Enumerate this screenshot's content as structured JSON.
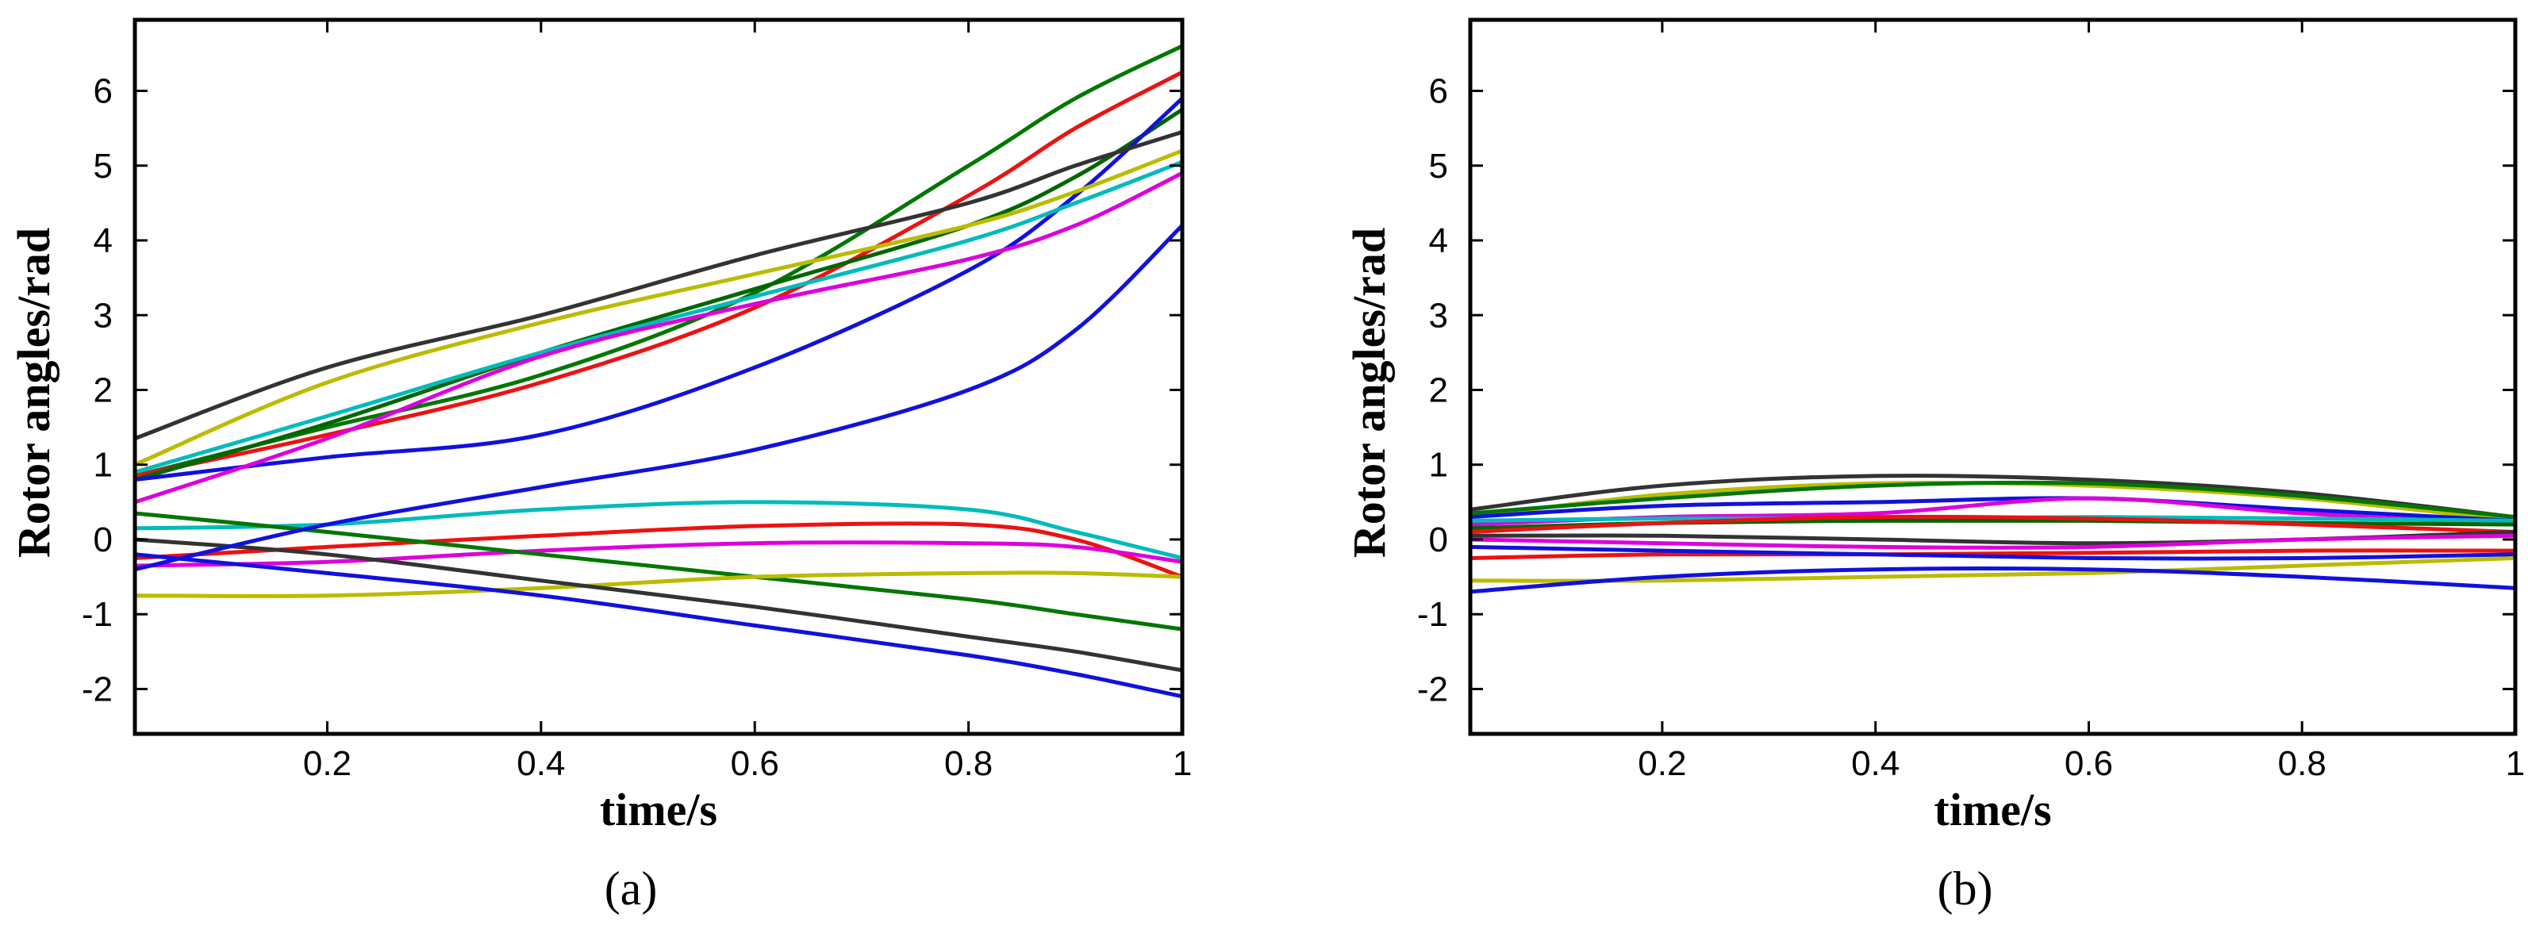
{
  "chart_data": [
    {
      "type": "line",
      "caption": "(a)",
      "xlabel": "time/s",
      "ylabel": "Rotor angles/rad",
      "xlim": [
        0.02,
        1.0
      ],
      "ylim": [
        -2.6,
        6.95
      ],
      "xticks": [
        0.2,
        0.4,
        0.6,
        0.8,
        1
      ],
      "xtick_labels": [
        "0.2",
        "0.4",
        "0.6",
        "0.8",
        "1"
      ],
      "yticks": [
        -2,
        -1,
        0,
        1,
        2,
        3,
        4,
        5,
        6
      ],
      "ytick_labels": [
        "-2",
        "-1",
        "0",
        "1",
        "2",
        "3",
        "4",
        "5",
        "6"
      ],
      "grid": false,
      "x": [
        0.02,
        0.2,
        0.4,
        0.6,
        0.8,
        0.9,
        1.0
      ],
      "series": [
        {
          "name": "green upper",
          "color": "#007700",
          "values": [
            0.85,
            1.5,
            2.2,
            3.3,
            5.0,
            5.9,
            6.6
          ]
        },
        {
          "name": "red upper",
          "color": "#ee1111",
          "values": [
            0.85,
            1.4,
            2.1,
            3.1,
            4.6,
            5.5,
            6.25
          ]
        },
        {
          "name": "dark green upper",
          "color": "#006600",
          "values": [
            0.8,
            1.55,
            2.5,
            3.35,
            4.2,
            4.85,
            5.75
          ]
        },
        {
          "name": "blue upper",
          "color": "#1111dd",
          "values": [
            0.8,
            1.1,
            1.4,
            2.3,
            3.6,
            4.6,
            5.9
          ]
        },
        {
          "name": "dark grey upper",
          "color": "#333333",
          "values": [
            1.35,
            2.3,
            3.0,
            3.8,
            4.5,
            5.0,
            5.45
          ]
        },
        {
          "name": "yellow upper",
          "color": "#bbbb00",
          "values": [
            1.0,
            2.1,
            2.9,
            3.55,
            4.2,
            4.65,
            5.2
          ]
        },
        {
          "name": "cyan upper",
          "color": "#00bbbb",
          "values": [
            0.9,
            1.65,
            2.5,
            3.25,
            4.0,
            4.5,
            5.05
          ]
        },
        {
          "name": "magenta upper",
          "color": "#dd00dd",
          "values": [
            0.5,
            1.35,
            2.45,
            3.15,
            3.75,
            4.2,
            4.9
          ]
        },
        {
          "name": "cyan lower",
          "color": "#00bbbb",
          "values": [
            0.15,
            0.2,
            0.4,
            0.5,
            0.4,
            0.1,
            -0.25
          ]
        },
        {
          "name": "red lower",
          "color": "#ee1111",
          "values": [
            -0.25,
            -0.1,
            0.05,
            0.18,
            0.2,
            0.0,
            -0.5
          ]
        },
        {
          "name": "magenta lower",
          "color": "#dd00dd",
          "values": [
            -0.35,
            -0.3,
            -0.15,
            -0.05,
            -0.05,
            -0.1,
            -0.3
          ]
        },
        {
          "name": "green lower",
          "color": "#007700",
          "values": [
            0.35,
            0.1,
            -0.2,
            -0.5,
            -0.8,
            -1.0,
            -1.2
          ]
        },
        {
          "name": "yellow lower",
          "color": "#bbbb00",
          "values": [
            -0.75,
            -0.75,
            -0.65,
            -0.5,
            -0.45,
            -0.45,
            -0.5
          ]
        },
        {
          "name": "dark grey lower",
          "color": "#333333",
          "values": [
            0.0,
            -0.2,
            -0.55,
            -0.9,
            -1.3,
            -1.5,
            -1.75
          ]
        },
        {
          "name": "blue lower",
          "color": "#1111dd",
          "values": [
            -0.2,
            -0.45,
            -0.75,
            -1.15,
            -1.55,
            -1.8,
            -2.1
          ]
        },
        {
          "name": "blue crossing",
          "color": "#1111dd",
          "values": [
            -0.4,
            0.2,
            0.7,
            1.2,
            2.0,
            2.8,
            4.2
          ]
        }
      ]
    },
    {
      "type": "line",
      "caption": "(b)",
      "xlabel": "time/s",
      "ylabel": "Rotor angles/rad",
      "xlim": [
        0.02,
        1.0
      ],
      "ylim": [
        -2.6,
        6.95
      ],
      "xticks": [
        0.2,
        0.4,
        0.6,
        0.8,
        1
      ],
      "xtick_labels": [
        "0.2",
        "0.4",
        "0.6",
        "0.8",
        "1"
      ],
      "yticks": [
        -2,
        -1,
        0,
        1,
        2,
        3,
        4,
        5,
        6
      ],
      "ytick_labels": [
        "-2",
        "-1",
        "0",
        "1",
        "2",
        "3",
        "4",
        "5",
        "6"
      ],
      "grid": false,
      "x": [
        0.02,
        0.2,
        0.4,
        0.6,
        0.8,
        1.0
      ],
      "series": [
        {
          "name": "dark grey",
          "color": "#333333",
          "values": [
            0.4,
            0.72,
            0.85,
            0.8,
            0.62,
            0.3
          ]
        },
        {
          "name": "yellow",
          "color": "#bbbb00",
          "values": [
            0.3,
            0.6,
            0.75,
            0.72,
            0.55,
            0.25
          ]
        },
        {
          "name": "green",
          "color": "#007700",
          "values": [
            0.35,
            0.55,
            0.72,
            0.75,
            0.58,
            0.3
          ]
        },
        {
          "name": "blue upper",
          "color": "#1111dd",
          "values": [
            0.3,
            0.45,
            0.5,
            0.55,
            0.4,
            0.25
          ]
        },
        {
          "name": "magenta upper",
          "color": "#dd00dd",
          "values": [
            0.2,
            0.3,
            0.35,
            0.55,
            0.35,
            0.2
          ]
        },
        {
          "name": "cyan",
          "color": "#00bbbb",
          "values": [
            0.25,
            0.28,
            0.28,
            0.3,
            0.28,
            0.25
          ]
        },
        {
          "name": "dark green",
          "color": "#006600",
          "values": [
            0.15,
            0.22,
            0.25,
            0.25,
            0.22,
            0.2
          ]
        },
        {
          "name": "red",
          "color": "#ee1111",
          "values": [
            0.1,
            0.22,
            0.3,
            0.28,
            0.2,
            0.1
          ]
        },
        {
          "name": "dark grey lower",
          "color": "#333333",
          "values": [
            0.05,
            0.05,
            0.0,
            -0.05,
            0.0,
            0.1
          ]
        },
        {
          "name": "magenta lower",
          "color": "#dd00dd",
          "values": [
            0.0,
            -0.05,
            -0.1,
            -0.1,
            0.0,
            0.05
          ]
        },
        {
          "name": "red lower",
          "color": "#ee1111",
          "values": [
            -0.25,
            -0.2,
            -0.2,
            -0.18,
            -0.15,
            -0.15
          ]
        },
        {
          "name": "blue middle",
          "color": "#1111dd",
          "values": [
            -0.1,
            -0.15,
            -0.2,
            -0.25,
            -0.25,
            -0.2
          ]
        },
        {
          "name": "yellow lower",
          "color": "#bbbb00",
          "values": [
            -0.55,
            -0.55,
            -0.5,
            -0.45,
            -0.35,
            -0.25
          ]
        },
        {
          "name": "blue lower",
          "color": "#1111dd",
          "values": [
            -0.7,
            -0.5,
            -0.4,
            -0.4,
            -0.5,
            -0.65
          ]
        }
      ]
    }
  ]
}
